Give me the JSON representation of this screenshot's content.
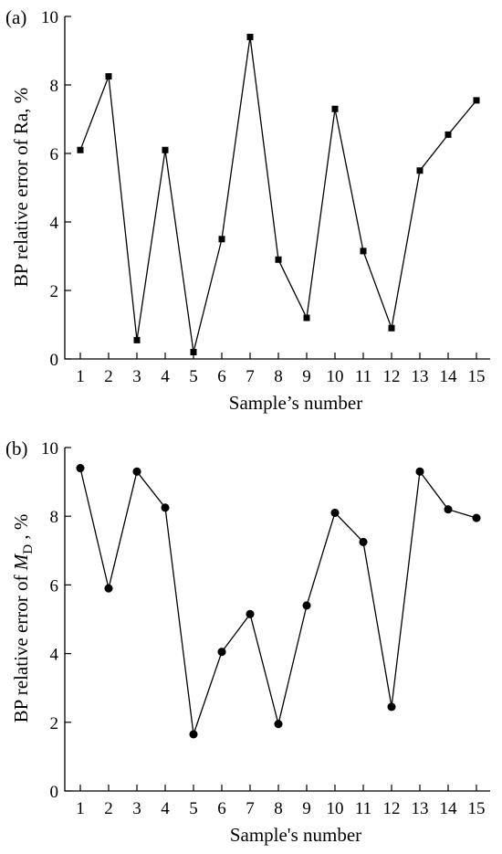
{
  "chart_data": [
    {
      "type": "line",
      "panel_label": "(a)",
      "xlabel": "Sample’s number",
      "ylabel": "BP relative error of Ra, %",
      "ylabel_parts": {
        "main": "BP relative error of Ra, %",
        "italic": "",
        "sub": "",
        "tail": ""
      },
      "ylim": [
        0,
        10
      ],
      "yticks": [
        0,
        2,
        4,
        6,
        8,
        10
      ],
      "categories": [
        "1",
        "2",
        "3",
        "4",
        "5",
        "6",
        "7",
        "8",
        "9",
        "10",
        "11",
        "12",
        "13",
        "14",
        "15"
      ],
      "marker": "square",
      "series": [
        {
          "values": [
            6.1,
            8.25,
            0.55,
            6.1,
            0.2,
            3.5,
            9.4,
            2.9,
            1.2,
            7.3,
            3.15,
            0.9,
            5.5,
            6.55,
            7.55
          ]
        }
      ]
    },
    {
      "type": "line",
      "panel_label": "(b)",
      "xlabel": "Sample's number",
      "ylabel": "BP relative error of MD , %",
      "ylabel_parts": {
        "main": "BP relative error of ",
        "italic": "M",
        "sub": "D",
        "tail": " , %"
      },
      "ylim": [
        0,
        10
      ],
      "yticks": [
        0,
        2,
        4,
        6,
        8,
        10
      ],
      "categories": [
        "1",
        "2",
        "3",
        "4",
        "5",
        "6",
        "7",
        "8",
        "9",
        "10",
        "11",
        "12",
        "13",
        "14",
        "15"
      ],
      "marker": "circle",
      "series": [
        {
          "values": [
            9.4,
            5.9,
            9.3,
            8.25,
            1.65,
            4.05,
            5.15,
            1.95,
            5.4,
            8.1,
            7.25,
            2.45,
            9.3,
            8.2,
            7.95
          ]
        }
      ]
    }
  ]
}
